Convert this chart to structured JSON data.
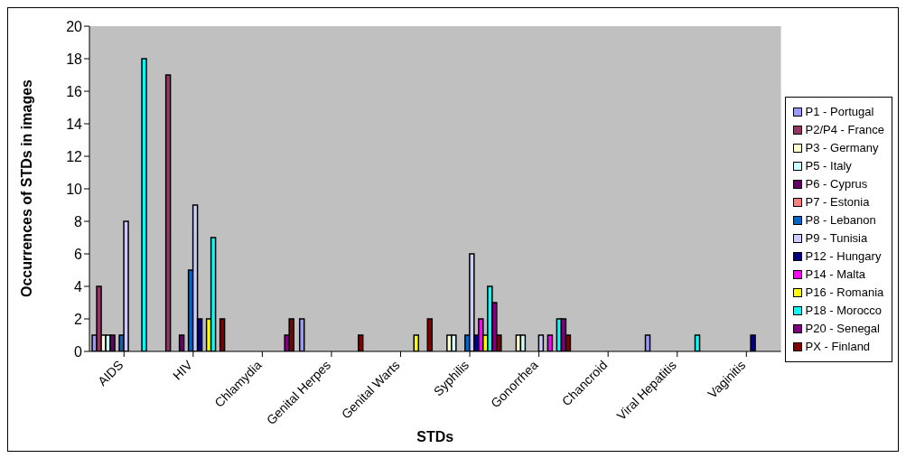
{
  "chart_data": {
    "type": "bar",
    "xlabel": "STDs",
    "ylabel": "Occurrences of STDs in images",
    "categories": [
      "AIDS",
      "HIV",
      "Chlamydia",
      "Genital Herpes",
      "Genital Warts",
      "Syphilis",
      "Gonorrhea",
      "Chancroid",
      "Viral Hepatitis",
      "Vaginitis"
    ],
    "series": [
      {
        "name": "P1 - Portugal",
        "color": "#9999ff",
        "values": [
          1,
          0,
          0,
          2,
          0,
          0,
          0,
          0,
          1,
          0
        ]
      },
      {
        "name": "P2/P4 - France",
        "color": "#993366",
        "values": [
          4,
          17,
          0,
          0,
          0,
          0,
          0,
          0,
          0,
          0
        ]
      },
      {
        "name": "P3 - Germany",
        "color": "#ffffcc",
        "values": [
          1,
          0,
          0,
          0,
          0,
          1,
          1,
          0,
          0,
          0
        ]
      },
      {
        "name": "P5 - Italy",
        "color": "#ccffff",
        "values": [
          1,
          0,
          0,
          0,
          0,
          1,
          1,
          0,
          0,
          0
        ]
      },
      {
        "name": "P6 - Cyprus",
        "color": "#660066",
        "values": [
          1,
          1,
          0,
          0,
          0,
          0,
          0,
          0,
          0,
          0
        ]
      },
      {
        "name": "P7 - Estonia",
        "color": "#ff8080",
        "values": [
          0,
          0,
          0,
          0,
          0,
          0,
          0,
          0,
          0,
          0
        ]
      },
      {
        "name": "P8 - Lebanon",
        "color": "#0066cc",
        "values": [
          1,
          5,
          0,
          0,
          0,
          1,
          0,
          0,
          0,
          0
        ]
      },
      {
        "name": "P9 - Tunisia",
        "color": "#ccccff",
        "values": [
          8,
          9,
          0,
          0,
          0,
          6,
          1,
          0,
          0,
          0
        ]
      },
      {
        "name": "P12 - Hungary",
        "color": "#000080",
        "values": [
          0,
          2,
          0,
          0,
          0,
          1,
          0,
          0,
          0,
          1
        ]
      },
      {
        "name": "P14 - Malta",
        "color": "#ff00ff",
        "values": [
          0,
          0,
          0,
          0,
          0,
          2,
          1,
          0,
          0,
          0
        ]
      },
      {
        "name": "P16 - Romania",
        "color": "#ffff00",
        "values": [
          0,
          2,
          0,
          0,
          1,
          1,
          0,
          0,
          0,
          0
        ]
      },
      {
        "name": "P18 - Morocco",
        "color": "#00ffff",
        "values": [
          18,
          7,
          0,
          0,
          0,
          4,
          2,
          0,
          1,
          0
        ]
      },
      {
        "name": "P20 - Senegal",
        "color": "#800080",
        "values": [
          0,
          0,
          1,
          0,
          0,
          3,
          2,
          0,
          0,
          0
        ]
      },
      {
        "name": "PX - Finland",
        "color": "#800000",
        "values": [
          0,
          2,
          2,
          1,
          2,
          1,
          1,
          0,
          0,
          0
        ]
      }
    ],
    "ylim": [
      0,
      20
    ],
    "yticks": [
      0,
      2,
      4,
      6,
      8,
      10,
      12,
      14,
      16,
      18,
      20
    ],
    "grid": false,
    "legend": "right"
  }
}
